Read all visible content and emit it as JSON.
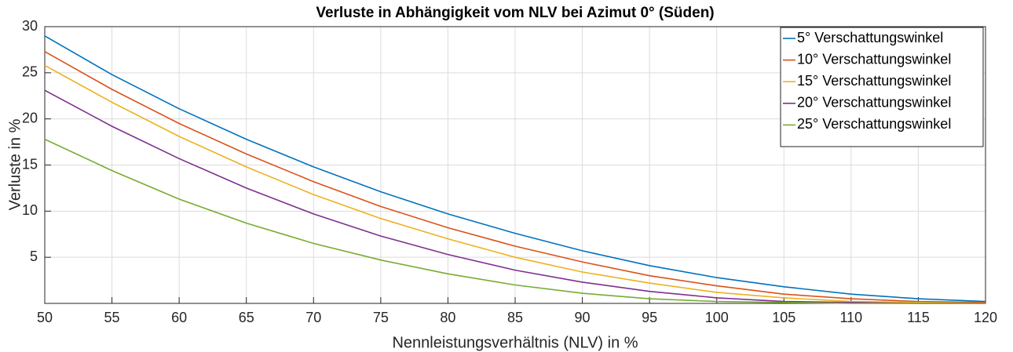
{
  "chart_data": {
    "type": "line",
    "title": "Verluste in Abhängigkeit vom NLV bei Azimut 0° (Süden)",
    "x_label": "Nennleistungsverhältnis (NLV) in %",
    "y_label": "Verluste in %",
    "x": [
      50,
      55,
      60,
      65,
      70,
      75,
      80,
      85,
      90,
      95,
      100,
      105,
      110,
      115,
      120
    ],
    "series": [
      {
        "name": "5° Verschattungswinkel",
        "color": "#0072BD",
        "values": [
          29.0,
          24.8,
          21.1,
          17.8,
          14.8,
          12.1,
          9.7,
          7.6,
          5.7,
          4.1,
          2.8,
          1.8,
          1.0,
          0.5,
          0.2
        ]
      },
      {
        "name": "10° Verschattungswinkel",
        "color": "#D95319",
        "values": [
          27.3,
          23.2,
          19.5,
          16.2,
          13.2,
          10.5,
          8.2,
          6.2,
          4.5,
          3.0,
          1.9,
          1.0,
          0.5,
          0.2,
          0.1
        ]
      },
      {
        "name": "15° Verschattungswinkel",
        "color": "#EDB120",
        "values": [
          25.8,
          21.8,
          18.1,
          14.8,
          11.8,
          9.2,
          7.0,
          5.0,
          3.4,
          2.2,
          1.2,
          0.6,
          0.2,
          0.1,
          0.0
        ]
      },
      {
        "name": "20° Verschattungswinkel",
        "color": "#7E2F8E",
        "values": [
          23.1,
          19.2,
          15.7,
          12.5,
          9.7,
          7.3,
          5.3,
          3.6,
          2.3,
          1.3,
          0.6,
          0.2,
          0.1,
          0.0,
          0.0
        ]
      },
      {
        "name": "25° Verschattungswinkel",
        "color": "#77AC30",
        "values": [
          17.8,
          14.4,
          11.3,
          8.7,
          6.5,
          4.7,
          3.2,
          2.0,
          1.1,
          0.5,
          0.2,
          0.1,
          0.0,
          0.0,
          0.0
        ]
      }
    ],
    "xlim": [
      50,
      120
    ],
    "xticks": [
      50,
      55,
      60,
      65,
      70,
      75,
      80,
      85,
      90,
      95,
      100,
      105,
      110,
      115,
      120
    ],
    "ylim": [
      0,
      30
    ],
    "yticks": [
      5,
      10,
      15,
      20,
      25,
      30
    ],
    "grid": true,
    "legend": "northeast"
  }
}
